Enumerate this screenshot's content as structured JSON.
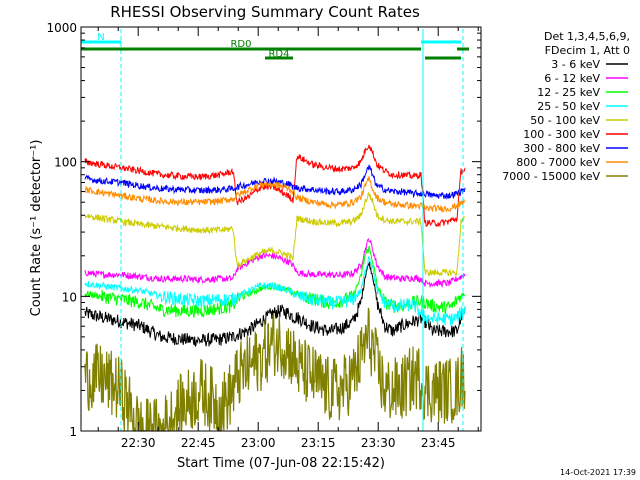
{
  "chart_data": {
    "type": "line",
    "title": "RHESSI Observing Summary Count Rates",
    "xlabel": "Start Time (07-Jun-08 22:15:42)",
    "ylabel": "Count Rate (s⁻¹ detector⁻¹)",
    "yscale": "log",
    "ylim": [
      1,
      1000
    ],
    "xlim_minutes_after_22_15_42": [
      0,
      100
    ],
    "x_tick_labels": [
      "22:30",
      "22:45",
      "23:00",
      "23:15",
      "23:30",
      "23:45"
    ],
    "x_tick_minutes": [
      14.3,
      29.3,
      44.3,
      59.3,
      74.3,
      89.3
    ],
    "y_tick_labels": [
      "1",
      "10",
      "100",
      "1000"
    ],
    "y_tick_values": [
      1,
      10,
      100,
      1000
    ],
    "info_lines": [
      "Det 1,3,4,5,6,9,",
      "FDecim 1, Att 0"
    ],
    "timestamp": "14-Oct-2021 17:39",
    "flags": [
      {
        "label": "N",
        "color": "#00ffff",
        "segments": [
          [
            0,
            10
          ]
        ]
      },
      {
        "label": "RD0",
        "color": "#008000",
        "segments": [
          [
            0,
            53
          ],
          [
            53,
            85
          ]
        ]
      },
      {
        "label": "RD4",
        "color": "#008000",
        "segments": [
          [
            46,
            53
          ]
        ]
      },
      {
        "label": "",
        "color": "#00ffff",
        "segments": [
          [
            85,
            95
          ]
        ]
      },
      {
        "label": "",
        "color": "#008000",
        "segments": [
          [
            86,
            95
          ]
        ]
      },
      {
        "label": "",
        "color": "#008000",
        "segments": [
          [
            94,
            97
          ]
        ]
      }
    ],
    "vlines": [
      {
        "x": 0,
        "color": "#00ffff",
        "style": "solid"
      },
      {
        "x": 10,
        "color": "#00ffff",
        "style": "dashed"
      },
      {
        "x": 85.5,
        "color": "#00ffff",
        "style": "solid"
      },
      {
        "x": 95.5,
        "color": "#00ffff",
        "style": "dashed"
      }
    ],
    "x": [
      1,
      5,
      10,
      15,
      20,
      25,
      30,
      35,
      38,
      39,
      42,
      45,
      48,
      50,
      52,
      53,
      54,
      58,
      62,
      65,
      68,
      70,
      71,
      72,
      73,
      74,
      76,
      78,
      80,
      83,
      85,
      86,
      88,
      90,
      92,
      93,
      94,
      95,
      96
    ],
    "series": [
      {
        "name": "3 - 6 keV",
        "color": "#000000",
        "values": [
          7.5,
          7.0,
          6.5,
          6.0,
          5.0,
          4.8,
          4.7,
          4.8,
          5.0,
          5.2,
          5.6,
          6.5,
          7.5,
          7.8,
          7.5,
          7.0,
          7.0,
          6.0,
          5.5,
          5.8,
          6.5,
          9.0,
          14,
          18,
          14,
          9.0,
          6.0,
          5.5,
          6.0,
          6.5,
          6.8,
          6.5,
          5.5,
          5.5,
          5.5,
          5.5,
          5.5,
          7.0,
          7.5
        ]
      },
      {
        "name": "6 - 12 keV",
        "color": "#ff00ff",
        "values": [
          15,
          14.5,
          14.5,
          14,
          13.5,
          13.5,
          13.3,
          13.5,
          13.5,
          16,
          18,
          20,
          20,
          19,
          18,
          17,
          15,
          14.5,
          14.5,
          14.3,
          14.8,
          17,
          22,
          27,
          22,
          17,
          14,
          13.7,
          13.5,
          13.7,
          13.5,
          12.5,
          12.5,
          12.5,
          12.5,
          13,
          13.5,
          14,
          14.5
        ]
      },
      {
        "name": "12 - 25 keV",
        "color": "#00ff00",
        "values": [
          10.5,
          10.0,
          9.5,
          9.0,
          8.0,
          7.8,
          7.8,
          8.2,
          8.5,
          9.5,
          10.5,
          11.5,
          12,
          11.5,
          11,
          10.5,
          10.5,
          9.5,
          9.0,
          9.2,
          10,
          14,
          20,
          23,
          18,
          12,
          9.0,
          8.5,
          8.5,
          9.0,
          9.2,
          9.0,
          8.5,
          8.3,
          8.3,
          8.5,
          9.5,
          10,
          10.5
        ]
      },
      {
        "name": "25 - 50 keV",
        "color": "#00ffff",
        "values": [
          12.5,
          12,
          11.5,
          11,
          10,
          9.5,
          9.2,
          9.5,
          9.5,
          10,
          11,
          12,
          12,
          11.5,
          11,
          10.5,
          10,
          9.5,
          9.0,
          9.0,
          9.5,
          11,
          15,
          20,
          16,
          11,
          9.0,
          8.5,
          8.5,
          8.7,
          7.5,
          7.0,
          6.8,
          6.8,
          6.8,
          6.8,
          7.0,
          7.5,
          8.0
        ]
      },
      {
        "name": "50 - 100 keV",
        "color": "#cccc00",
        "values": [
          40,
          38,
          36,
          34,
          33,
          32,
          31,
          31,
          32,
          17,
          19,
          21,
          22,
          21,
          20,
          19,
          38,
          36,
          35,
          35,
          36,
          40,
          50,
          58,
          50,
          40,
          37,
          36,
          36,
          36,
          36,
          15,
          15,
          15,
          15,
          15,
          15,
          36,
          38
        ]
      },
      {
        "name": "100 - 300 keV",
        "color": "#ff0000",
        "values": [
          100,
          95,
          90,
          85,
          80,
          78,
          77,
          80,
          85,
          50,
          55,
          65,
          65,
          60,
          55,
          52,
          110,
          95,
          90,
          88,
          90,
          100,
          120,
          135,
          115,
          95,
          85,
          80,
          80,
          78,
          80,
          35,
          35,
          35,
          36,
          37,
          38,
          85,
          88
        ]
      },
      {
        "name": "300 - 800 keV",
        "color": "#0000ff",
        "values": [
          75,
          72,
          70,
          66,
          63,
          62,
          61,
          62,
          63,
          65,
          68,
          72,
          72,
          70,
          68,
          65,
          64,
          62,
          60,
          60,
          62,
          68,
          80,
          92,
          78,
          66,
          62,
          60,
          60,
          58,
          58,
          58,
          56,
          56,
          56,
          57,
          58,
          60,
          62
        ]
      },
      {
        "name": "800 - 7000 keV",
        "color": "#ff8c00",
        "values": [
          62,
          59,
          56,
          53,
          51,
          50,
          50,
          51,
          53,
          56,
          62,
          68,
          68,
          66,
          63,
          60,
          54,
          50,
          48,
          48,
          50,
          55,
          65,
          75,
          62,
          54,
          50,
          48,
          48,
          47,
          47,
          45,
          45,
          45,
          45,
          46,
          47,
          49,
          51
        ]
      },
      {
        "name": "7000 - 15000 keV",
        "color": "#808000",
        "values": [
          2.5,
          2.5,
          2.0,
          1.0,
          1.0,
          1.5,
          2.0,
          1.5,
          2.0,
          2.5,
          3.0,
          3.5,
          4.5,
          4.5,
          4.0,
          3.5,
          3.0,
          2.5,
          2.0,
          2.0,
          2.5,
          3.5,
          4.5,
          5.0,
          4.0,
          3.0,
          2.0,
          2.0,
          2.0,
          2.5,
          2.5,
          2.0,
          2.0,
          2.0,
          2.0,
          2.0,
          2.0,
          2.5,
          2.5
        ]
      }
    ]
  }
}
